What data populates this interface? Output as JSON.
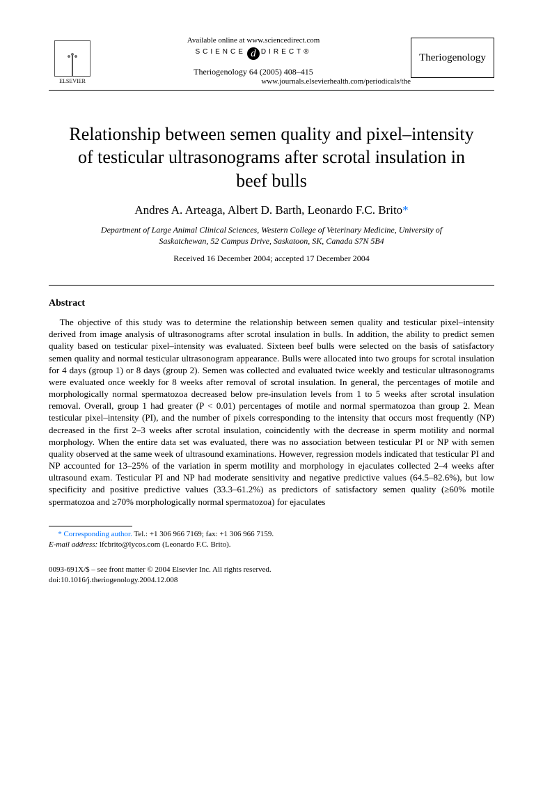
{
  "header": {
    "publisher_name": "ELSEVIER",
    "available_line": "Available online at www.sciencedirect.com",
    "sd_left": "SCIENCE",
    "sd_right": "DIRECT®",
    "journal_ref": "Theriogenology 64 (2005) 408–415",
    "journal_url": "www.journals.elsevierhealth.com/periodicals/the",
    "journal_box": "Theriogenology"
  },
  "title": "Relationship between semen quality and pixel–intensity of testicular ultrasonograms after scrotal insulation in beef bulls",
  "authors": "Andres A. Arteaga, Albert D. Barth, Leonardo F.C. Brito",
  "corr_marker": "*",
  "affiliation": "Department of Large Animal Clinical Sciences, Western College of Veterinary Medicine, University of Saskatchewan, 52 Campus Drive, Saskatoon, SK, Canada S7N 5B4",
  "dates": "Received 16 December 2004; accepted 17 December 2004",
  "abstract_heading": "Abstract",
  "abstract": "The objective of this study was to determine the relationship between semen quality and testicular pixel–intensity derived from image analysis of ultrasonograms after scrotal insulation in bulls. In addition, the ability to predict semen quality based on testicular pixel–intensity was evaluated. Sixteen beef bulls were selected on the basis of satisfactory semen quality and normal testicular ultrasonogram appearance. Bulls were allocated into two groups for scrotal insulation for 4 days (group 1) or 8 days (group 2). Semen was collected and evaluated twice weekly and testicular ultrasonograms were evaluated once weekly for 8 weeks after removal of scrotal insulation. In general, the percentages of motile and morphologically normal spermatozoa decreased below pre-insulation levels from 1 to 5 weeks after scrotal insulation removal. Overall, group 1 had greater (P < 0.01) percentages of motile and normal spermatozoa than group 2. Mean testicular pixel–intensity (PI), and the number of pixels corresponding to the intensity that occurs most frequently (NP) decreased in the first 2–3 weeks after scrotal insulation, coincidently with the decrease in sperm motility and normal morphology. When the entire data set was evaluated, there was no association between testicular PI or NP with semen quality observed at the same week of ultrasound examinations. However, regression models indicated that testicular PI and NP accounted for 13–25% of the variation in sperm motility and morphology in ejaculates collected 2–4 weeks after ultrasound exam. Testicular PI and NP had moderate sensitivity and negative predictive values (64.5–82.6%), but low specificity and positive predictive values (33.3–61.2%) as predictors of satisfactory semen quality (≥60% motile spermatozoa and ≥70% morphologically normal spermatozoa) for ejaculates",
  "footnote": {
    "line1_label": "* Corresponding author. ",
    "line1_rest": "Tel.: +1 306 966 7169; fax: +1 306 966 7159.",
    "line2_label": "E-mail address: ",
    "line2_rest": "lfcbrito@lycos.com (Leonardo F.C. Brito)."
  },
  "copyright": {
    "line1": "0093-691X/$ – see front matter © 2004 Elsevier Inc. All rights reserved.",
    "line2": "doi:10.1016/j.theriogenology.2004.12.008"
  },
  "colors": {
    "link": "#0072ff",
    "text": "#000000",
    "bg": "#ffffff"
  }
}
